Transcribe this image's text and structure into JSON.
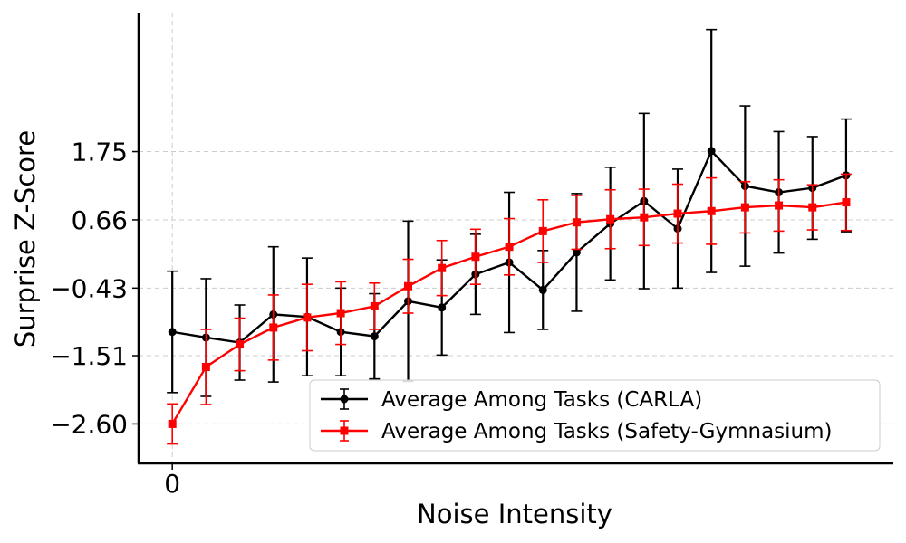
{
  "chart_data": {
    "type": "line",
    "title": "",
    "xlabel": "Noise Intensity",
    "ylabel": "Surprise Z-Score",
    "x": [
      0,
      1,
      2,
      3,
      4,
      5,
      6,
      7,
      8,
      9,
      10,
      11,
      12,
      13,
      14,
      15,
      16,
      17,
      18,
      19,
      20
    ],
    "xticks": [
      0
    ],
    "xtick_labels": [
      "0"
    ],
    "xlim": [
      -1,
      21.4
    ],
    "yticks": [
      1.75,
      0.66,
      -0.43,
      -1.51,
      -2.6
    ],
    "ytick_labels": [
      "1.75",
      "0.66",
      "−0.43",
      "−1.51",
      "−2.60"
    ],
    "ylim": [
      -3.23,
      3.97
    ],
    "grid": true,
    "legend_position": "lower-right",
    "series": [
      {
        "name": "Average Among Tasks (CARLA)",
        "color": "#000000",
        "marker": "circle",
        "values": [
          -1.13,
          -1.22,
          -1.3,
          -0.85,
          -0.89,
          -1.13,
          -1.2,
          -0.64,
          -0.74,
          -0.21,
          -0.02,
          -0.46,
          0.14,
          0.6,
          0.96,
          0.52,
          1.76,
          1.2,
          1.1,
          1.17,
          1.37
        ],
        "errors": [
          0.97,
          0.94,
          0.6,
          1.08,
          0.94,
          0.7,
          0.68,
          1.28,
          0.76,
          0.64,
          1.12,
          0.63,
          0.94,
          0.9,
          1.4,
          0.95,
          1.94,
          1.28,
          0.97,
          0.82,
          0.9
        ]
      },
      {
        "name": "Average Among Tasks (Safety-Gymnasium)",
        "color": "#ff0000",
        "marker": "square",
        "values": [
          -2.6,
          -1.69,
          -1.33,
          -1.06,
          -0.9,
          -0.83,
          -0.72,
          -0.4,
          -0.11,
          0.07,
          0.23,
          0.48,
          0.62,
          0.67,
          0.7,
          0.76,
          0.8,
          0.86,
          0.89,
          0.86,
          0.94
        ],
        "errors": [
          0.32,
          0.6,
          0.42,
          0.52,
          0.53,
          0.5,
          0.37,
          0.43,
          0.44,
          0.44,
          0.45,
          0.5,
          0.43,
          0.47,
          0.45,
          0.47,
          0.53,
          0.41,
          0.41,
          0.36,
          0.45
        ]
      }
    ]
  }
}
